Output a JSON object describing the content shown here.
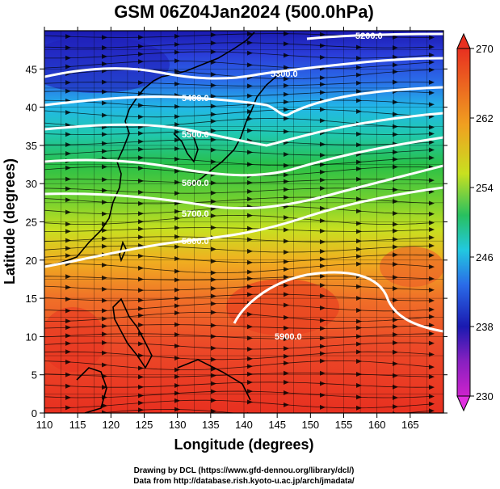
{
  "title": "GSM 06Z04Jan2024 (500.0hPa)",
  "x_axis": {
    "label": "Longitude (degrees)",
    "min": 110,
    "max": 170,
    "ticks": [
      "110",
      "115",
      "120",
      "125",
      "130",
      "135",
      "140",
      "145",
      "150",
      "155",
      "160",
      "165"
    ]
  },
  "y_axis": {
    "label": "Latitude  (degrees)",
    "min": 0,
    "max": 50,
    "ticks": [
      "0",
      "5",
      "10",
      "15",
      "20",
      "25",
      "30",
      "35",
      "40",
      "45"
    ]
  },
  "colorbar": {
    "min": 230,
    "max": 270,
    "ticks": [
      "230",
      "238",
      "246",
      "254",
      "262",
      "270"
    ],
    "colors": [
      "#cc22cc",
      "#1a1ab0",
      "#2a6be8",
      "#22c8e0",
      "#28c060",
      "#c8e020",
      "#f0a020",
      "#e83020"
    ]
  },
  "contours": [
    {
      "value": 5200,
      "label": "5200.0"
    },
    {
      "value": 5300,
      "label": "5300.0"
    },
    {
      "value": 5400,
      "label": "5400.0"
    },
    {
      "value": 5500,
      "label": "5500.0"
    },
    {
      "value": 5600,
      "label": "5600.0"
    },
    {
      "value": 5700,
      "label": "5700.0"
    },
    {
      "value": 5800,
      "label": "5800.0"
    },
    {
      "value": 5900,
      "label": "5900.0"
    }
  ],
  "credits": {
    "line1": "Drawing by DCL (https://www.gfd-dennou.org/library/dcl/)",
    "line2": "Data from http://database.rish.kyoto-u.ac.jp/arch/jmadata/"
  }
}
